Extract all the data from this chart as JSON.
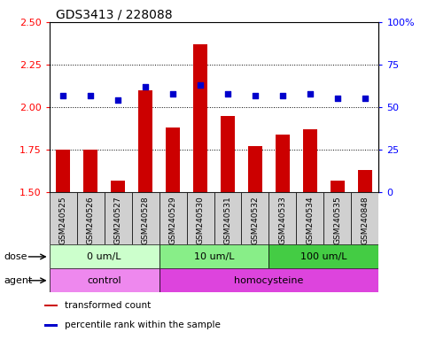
{
  "title": "GDS3413 / 228088",
  "samples": [
    "GSM240525",
    "GSM240526",
    "GSM240527",
    "GSM240528",
    "GSM240529",
    "GSM240530",
    "GSM240531",
    "GSM240532",
    "GSM240533",
    "GSM240534",
    "GSM240535",
    "GSM240848"
  ],
  "transformed_count": [
    1.75,
    1.75,
    1.57,
    2.1,
    1.88,
    2.37,
    1.95,
    1.77,
    1.84,
    1.87,
    1.57,
    1.63
  ],
  "percentile_rank": [
    57,
    57,
    54,
    62,
    58,
    63,
    58,
    57,
    57,
    58,
    55,
    55
  ],
  "bar_color": "#cc0000",
  "dot_color": "#0000cc",
  "ylim_left": [
    1.5,
    2.5
  ],
  "ylim_right": [
    0,
    100
  ],
  "yticks_left": [
    1.5,
    1.75,
    2.0,
    2.25,
    2.5
  ],
  "yticks_right": [
    0,
    25,
    50,
    75,
    100
  ],
  "ytick_labels_right": [
    "0",
    "25",
    "50",
    "75",
    "100%"
  ],
  "hlines": [
    1.75,
    2.0,
    2.25
  ],
  "dose_groups": [
    {
      "label": "0 um/L",
      "start": 0,
      "end": 4,
      "color": "#ccffcc"
    },
    {
      "label": "10 um/L",
      "start": 4,
      "end": 8,
      "color": "#88ee88"
    },
    {
      "label": "100 um/L",
      "start": 8,
      "end": 12,
      "color": "#44cc44"
    }
  ],
  "agent_groups": [
    {
      "label": "control",
      "start": 0,
      "end": 4,
      "color": "#ee88ee"
    },
    {
      "label": "homocysteine",
      "start": 4,
      "end": 12,
      "color": "#dd44dd"
    }
  ],
  "legend_items": [
    {
      "label": "transformed count",
      "color": "#cc0000"
    },
    {
      "label": "percentile rank within the sample",
      "color": "#0000cc"
    }
  ],
  "bar_width": 0.5,
  "title_fontsize": 10,
  "tick_fontsize": 8,
  "sample_fontsize": 6.5
}
